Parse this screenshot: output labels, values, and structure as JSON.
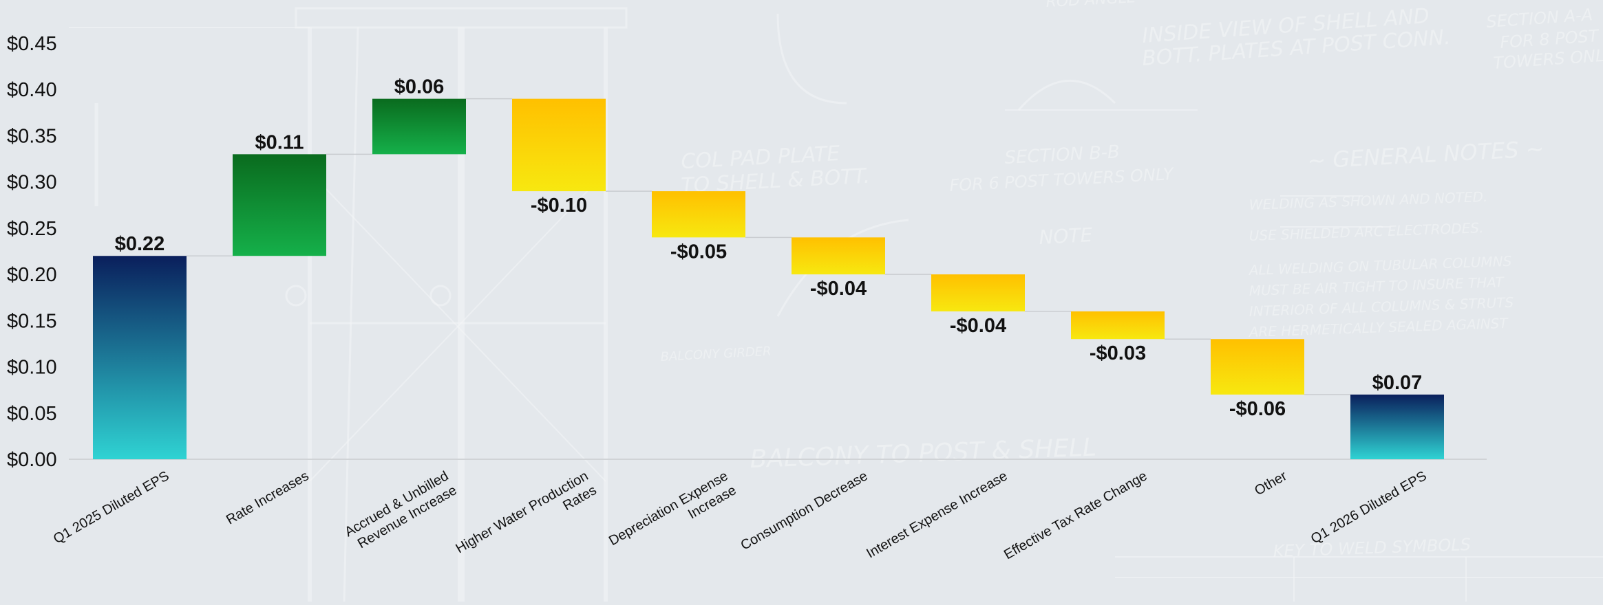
{
  "chart_data": {
    "type": "waterfall",
    "title": "",
    "xlabel": "",
    "ylabel": "",
    "ylim": [
      0,
      0.45
    ],
    "yticks": [
      "$0.00",
      "$0.05",
      "$0.10",
      "$0.15",
      "$0.20",
      "$0.25",
      "$0.30",
      "$0.35",
      "$0.40",
      "$0.45"
    ],
    "grid": false,
    "legend": "none",
    "categories": [
      "Q1 2025 Diluted EPS",
      "Rate Increases",
      "Accrued & Unbilled Revenue Increase",
      "Higher Water Production Rates",
      "Depreciation Expense Increase",
      "Consumption Decrease",
      "Interest Expense Increase",
      "Effective Tax Rate Change",
      "Other",
      "Q1 2026 Diluted EPS"
    ],
    "values": [
      0.22,
      0.11,
      0.06,
      -0.1,
      -0.05,
      -0.04,
      -0.04,
      -0.03,
      -0.06,
      0.07
    ],
    "kinds": [
      "total",
      "increase",
      "increase",
      "decrease",
      "decrease",
      "decrease",
      "decrease",
      "decrease",
      "decrease",
      "total"
    ],
    "data_labels": [
      "$0.22",
      "$0.11",
      "$0.06",
      "-$0.10",
      "-$0.05",
      "-$0.04",
      "-$0.04",
      "-$0.03",
      "-$0.06",
      "$0.07"
    ],
    "colors": {
      "total_top": "#0a1f5c",
      "total_bottom": "#2fd3d3",
      "increase_top": "#0a6b1e",
      "increase_bottom": "#15b04a",
      "decrease_top": "#ffc000",
      "decrease_bottom": "#f7e810",
      "connector": "#c9ccd0",
      "axis": "#d0d3d6",
      "background": "#e4e8ec"
    },
    "background_watermark_text": [
      "INSIDE VIEW OF SHELL AND",
      "BOTT. PLATES AT POST CONN.",
      "SECTION A-A",
      "FOR 8 POST",
      "TOWERS ONLY",
      "SECTION B-B",
      "FOR 6 POST TOWERS ONLY",
      "COL PAD PLATE",
      "TO SHELL & BOTT.",
      "~ GENERAL NOTES ~",
      "WELDING AS SHOWN AND NOTED.",
      "USE SHIELDED ARC ELECTRODES.",
      "ALL WELDING ON TUBULAR COLUMNS",
      "MUST BE AIR TIGHT TO INSURE THAT",
      "INTERIOR OF ALL COLUMNS & STRUTS",
      "ARE HERMETICALLY SEALED AGAINST",
      "BALCONY TO POST & SHELL",
      "KEY TO WELD SYMBOLS",
      "ROD ANGLE",
      "BALCONY GIRDER",
      "NOTE"
    ]
  }
}
